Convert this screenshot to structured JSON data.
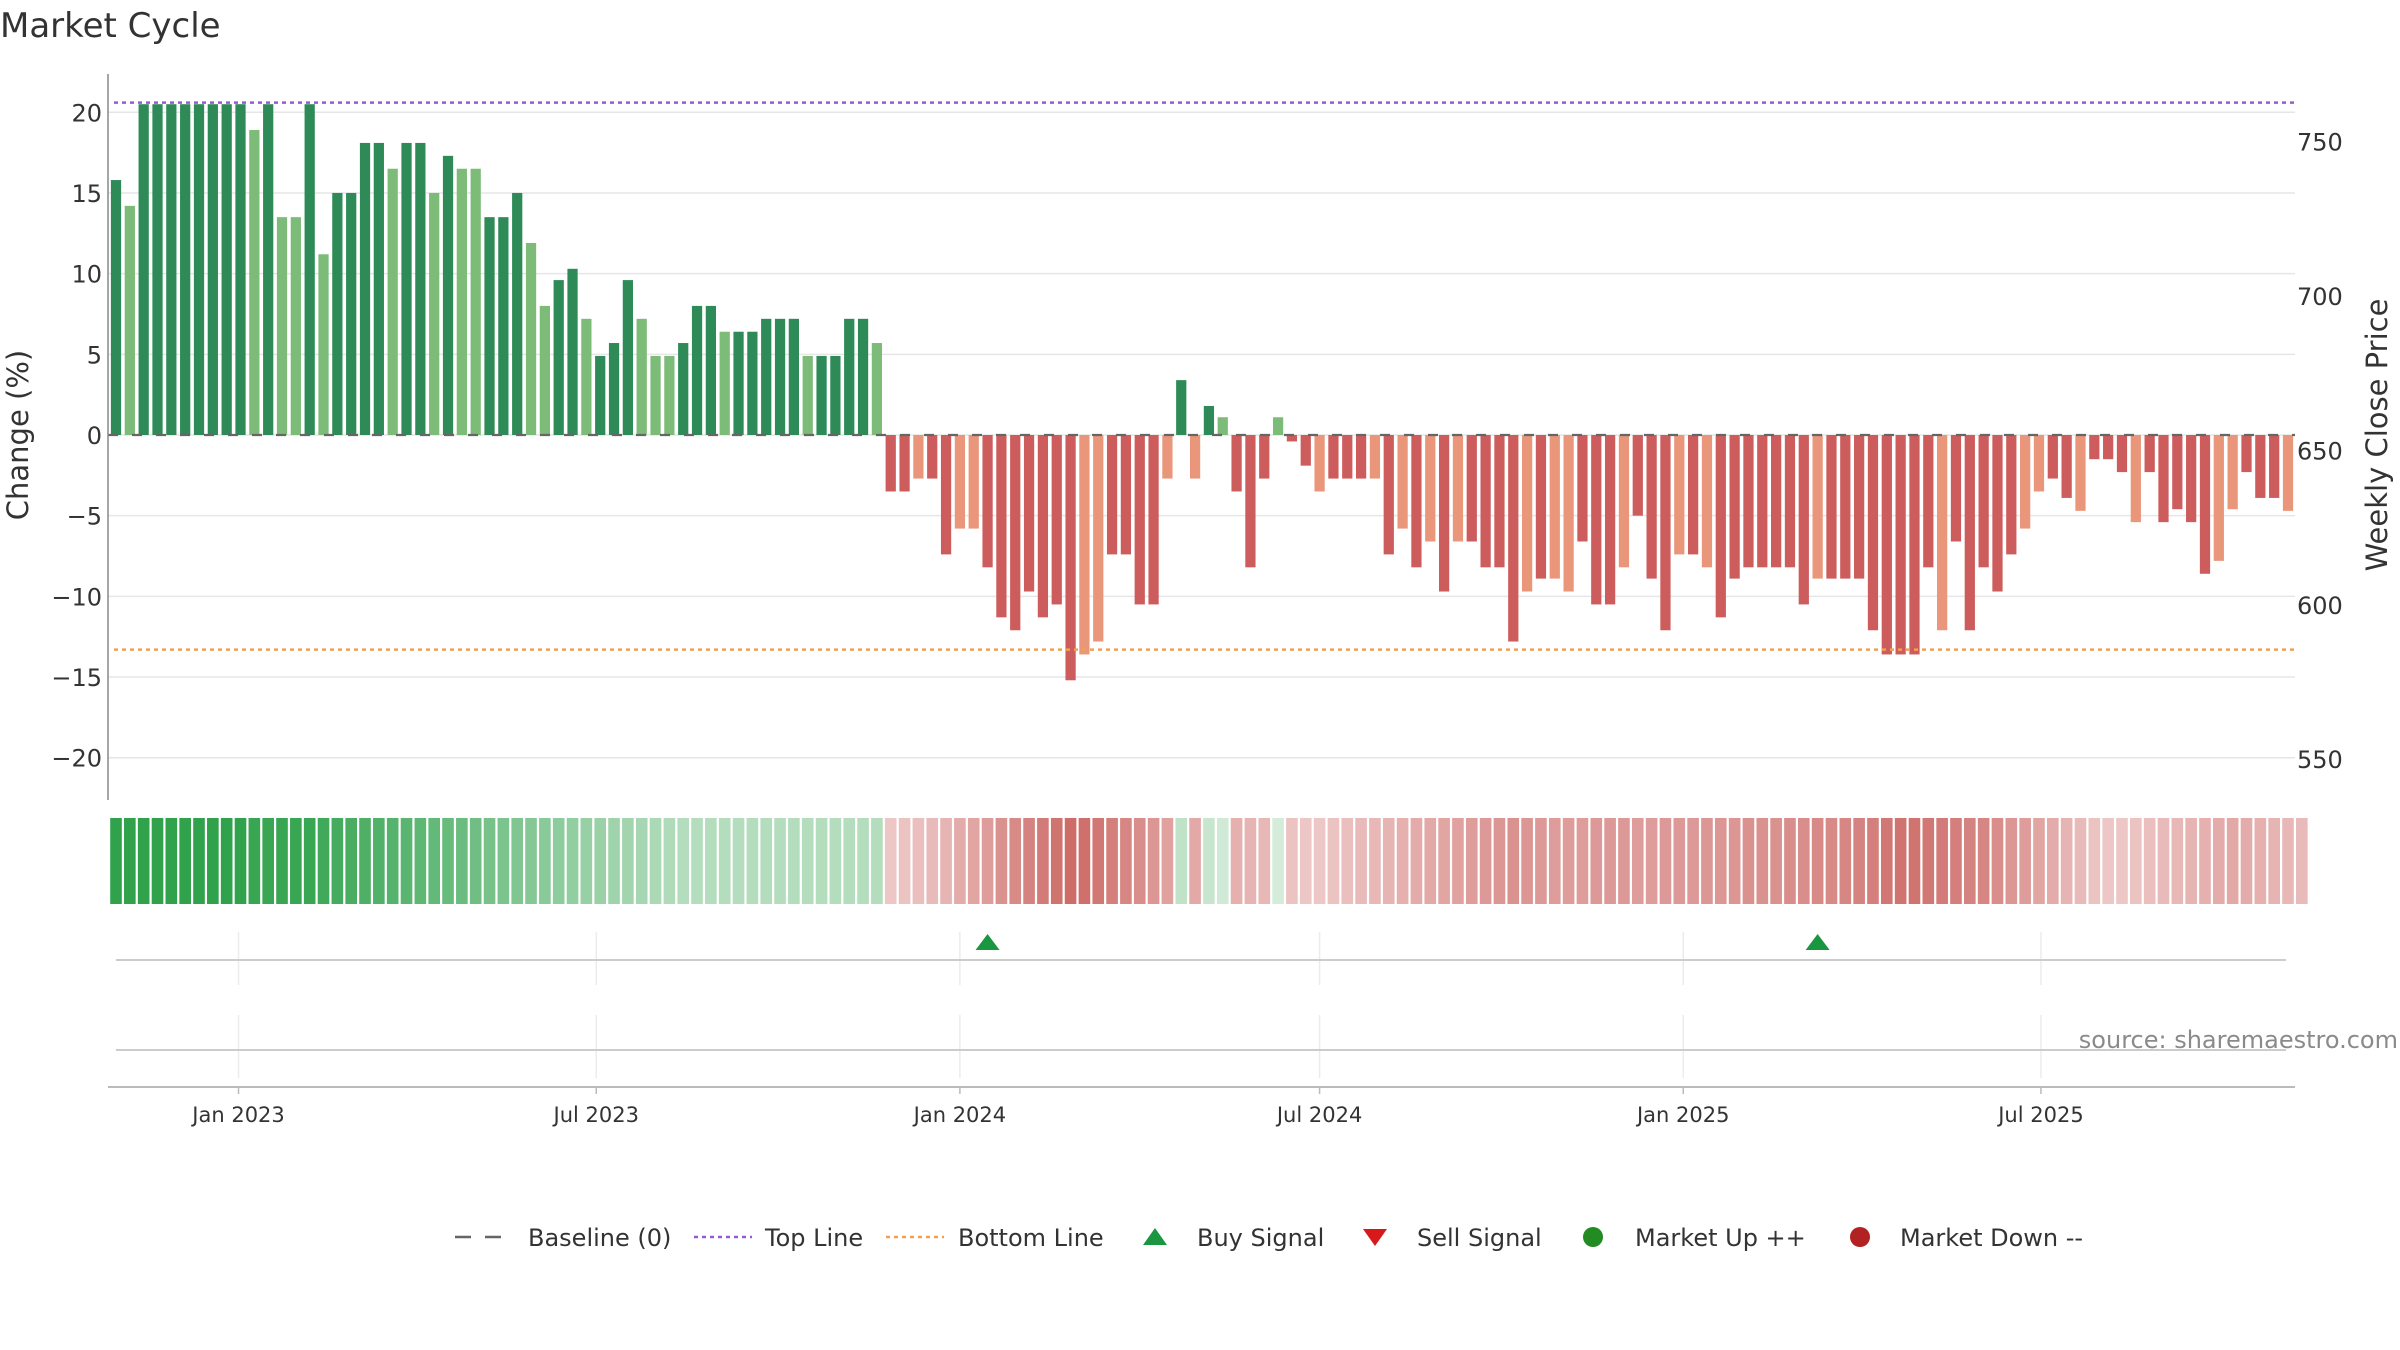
{
  "title": "Market Cycle",
  "source": "source: sharemaestro.com",
  "colors": {
    "up_strong": "#2e8b57",
    "up_light": "#7dbb78",
    "down_strong": "#cd5c5c",
    "down_light": "#e9967a",
    "top_line": "#9b59d0",
    "bottom_line": "#f0a050",
    "baseline": "#666666",
    "buy": "#1a9641",
    "sell": "#d7191c",
    "market_up": "#228b22",
    "market_down": "#b22222"
  },
  "legend": [
    {
      "label": "Baseline (0)",
      "icon": "dash-line-icon"
    },
    {
      "label": "Top Line",
      "icon": "dotted-purple-line-icon"
    },
    {
      "label": "Bottom Line",
      "icon": "dotted-orange-line-icon"
    },
    {
      "label": "Buy Signal",
      "icon": "triangle-up-icon"
    },
    {
      "label": "Sell Signal",
      "icon": "triangle-down-icon"
    },
    {
      "label": "Market Up ++",
      "icon": "green-circle-icon"
    },
    {
      "label": "Market Down --",
      "icon": "red-circle-icon"
    }
  ],
  "chart_data": {
    "type": "bar",
    "x_start": "2022-10-31",
    "x_interval": "weekly",
    "ylabel": "Change (%)",
    "ylabel_right": "Weekly Close Price",
    "yticks": [
      20,
      15,
      10,
      5,
      0,
      -5,
      -10,
      -15,
      -20
    ],
    "ytick_labels": [
      "20",
      "15",
      "10",
      "5",
      "0",
      "−5",
      "−10",
      "−15",
      "−20"
    ],
    "ylim": [
      -22,
      22
    ],
    "y2ticks": [
      750,
      700,
      650,
      600,
      550
    ],
    "y2lim": [
      540,
      770
    ],
    "xticks": [
      {
        "date": "2023-01-01",
        "label": "Jan 2023"
      },
      {
        "date": "2023-07-01",
        "label": "Jul 2023"
      },
      {
        "date": "2024-01-01",
        "label": "Jan 2024"
      },
      {
        "date": "2024-07-01",
        "label": "Jul 2024"
      },
      {
        "date": "2025-01-01",
        "label": "Jan 2025"
      },
      {
        "date": "2025-07-01",
        "label": "Jul 2025"
      }
    ],
    "top_line": 20.6,
    "bottom_line": -13.3,
    "values": [
      15.8,
      14.2,
      20.5,
      20.5,
      20.5,
      20.5,
      20.5,
      20.5,
      20.5,
      20.5,
      18.9,
      20.5,
      13.5,
      13.5,
      20.5,
      11.2,
      15,
      15,
      18.1,
      18.1,
      16.5,
      18.1,
      18.1,
      15,
      17.3,
      16.5,
      16.5,
      13.5,
      13.5,
      15,
      11.9,
      8,
      9.6,
      10.3,
      7.2,
      4.9,
      5.7,
      9.6,
      7.2,
      4.9,
      4.9,
      5.7,
      8,
      8,
      6.4,
      6.4,
      6.4,
      7.2,
      7.2,
      7.2,
      4.9,
      4.9,
      4.9,
      7.2,
      7.2,
      5.7,
      -3.5,
      -3.5,
      -2.7,
      -2.7,
      -7.4,
      -5.8,
      -5.8,
      -8.2,
      -11.3,
      -12.1,
      -9.7,
      -11.3,
      -10.5,
      -15.2,
      -13.6,
      -12.8,
      -7.4,
      -7.4,
      -10.5,
      -10.5,
      -2.7,
      3.4,
      -2.7,
      1.8,
      1.1,
      -3.5,
      -8.2,
      -2.7,
      1.1,
      -0.4,
      -1.9,
      -3.5,
      -2.7,
      -2.7,
      -2.7,
      -2.7,
      -7.4,
      -5.8,
      -8.2,
      -6.6,
      -9.7,
      -6.6,
      -6.6,
      -8.2,
      -8.2,
      -12.8,
      -9.7,
      -8.9,
      -8.9,
      -9.7,
      -6.6,
      -10.5,
      -10.5,
      -8.2,
      -5,
      -8.9,
      -12.1,
      -7.4,
      -7.4,
      -8.2,
      -11.3,
      -8.9,
      -8.2,
      -8.2,
      -8.2,
      -8.2,
      -10.5,
      -8.9,
      -8.9,
      -8.9,
      -8.9,
      -12.1,
      -13.6,
      -13.6,
      -13.6,
      -8.2,
      -12.1,
      -6.6,
      -12.1,
      -8.2,
      -9.7,
      -7.4,
      -5.8,
      -3.5,
      -2.7,
      -3.9,
      -4.7,
      -1.5,
      -1.5,
      -2.3,
      -5.4,
      -2.3,
      -5.4,
      -4.6,
      -5.4,
      -8.6,
      -7.8,
      -4.6,
      -2.3,
      -3.9,
      -3.9,
      -4.7
    ],
    "strong_weeks": [
      0,
      2,
      3,
      4,
      5,
      6,
      7,
      8,
      9,
      11,
      14,
      16,
      17,
      18,
      19,
      21,
      22,
      24,
      27,
      28,
      29,
      32,
      33,
      35,
      36,
      37,
      41,
      42,
      43,
      45,
      46,
      47,
      48,
      49,
      51,
      52,
      53,
      54,
      56,
      57,
      59,
      60,
      63,
      64,
      65,
      66,
      67,
      68,
      69,
      72,
      73,
      74,
      75,
      77,
      79,
      81,
      82,
      83,
      85,
      86,
      88,
      89,
      90,
      92,
      94,
      96,
      98,
      99,
      100,
      101,
      103,
      106,
      107,
      108,
      110,
      111,
      112,
      114,
      116,
      117,
      118,
      119,
      120,
      121,
      122,
      124,
      125,
      126,
      127,
      128,
      129,
      130,
      131,
      133,
      134,
      135,
      136,
      137,
      140,
      141,
      143,
      144,
      145,
      147,
      148,
      149,
      150,
      151,
      154,
      155,
      156
    ],
    "strength_band": [
      0.98,
      0.98,
      0.98,
      0.98,
      0.98,
      0.98,
      0.98,
      0.98,
      0.98,
      0.98,
      0.94,
      0.94,
      0.94,
      0.94,
      0.94,
      0.9,
      0.88,
      0.86,
      0.84,
      0.82,
      0.8,
      0.78,
      0.76,
      0.74,
      0.72,
      0.7,
      0.68,
      0.64,
      0.62,
      0.6,
      0.58,
      0.56,
      0.54,
      0.52,
      0.5,
      0.48,
      0.46,
      0.44,
      0.42,
      0.4,
      0.38,
      0.36,
      0.36,
      0.36,
      0.36,
      0.36,
      0.36,
      0.36,
      0.36,
      0.36,
      0.36,
      0.36,
      0.36,
      0.36,
      0.36,
      0.36,
      -0.3,
      -0.32,
      -0.34,
      -0.36,
      -0.4,
      -0.44,
      -0.48,
      -0.52,
      -0.58,
      -0.62,
      -0.66,
      -0.7,
      -0.74,
      -0.78,
      -0.76,
      -0.72,
      -0.68,
      -0.64,
      -0.6,
      -0.56,
      -0.5,
      0.3,
      -0.46,
      0.26,
      0.22,
      -0.42,
      -0.4,
      -0.38,
      0.2,
      -0.32,
      -0.3,
      -0.3,
      -0.32,
      -0.34,
      -0.36,
      -0.38,
      -0.4,
      -0.42,
      -0.44,
      -0.46,
      -0.48,
      -0.5,
      -0.52,
      -0.54,
      -0.56,
      -0.58,
      -0.56,
      -0.54,
      -0.52,
      -0.52,
      -0.52,
      -0.54,
      -0.54,
      -0.54,
      -0.52,
      -0.52,
      -0.54,
      -0.54,
      -0.54,
      -0.56,
      -0.56,
      -0.56,
      -0.58,
      -0.58,
      -0.58,
      -0.6,
      -0.6,
      -0.62,
      -0.62,
      -0.64,
      -0.66,
      -0.68,
      -0.72,
      -0.74,
      -0.74,
      -0.72,
      -0.7,
      -0.68,
      -0.66,
      -0.64,
      -0.6,
      -0.56,
      -0.52,
      -0.48,
      -0.44,
      -0.4,
      -0.36,
      -0.32,
      -0.3,
      -0.3,
      -0.32,
      -0.34,
      -0.36,
      -0.38,
      -0.4,
      -0.42,
      -0.44,
      -0.46,
      -0.44,
      -0.42,
      -0.4,
      -0.38,
      -0.36
    ],
    "buy_signals": [
      "2024-01-15",
      "2025-03-10"
    ],
    "sell_signals": []
  }
}
